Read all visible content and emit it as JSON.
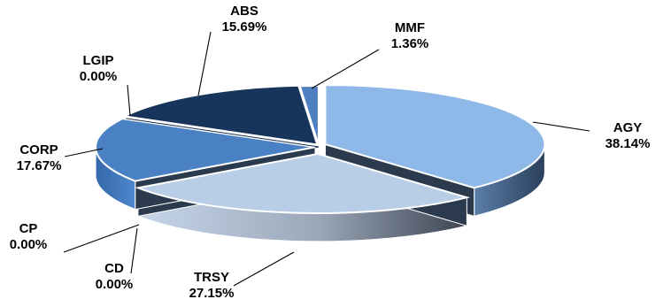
{
  "chart_data": {
    "type": "pie",
    "style": "3d-exploded",
    "title": "",
    "legend": "none",
    "slices": [
      {
        "name": "AGY",
        "value": 38.14,
        "label": "38.14%",
        "color": "#8db8e8"
      },
      {
        "name": "TRSY",
        "value": 27.15,
        "label": "27.15%",
        "color": "#b8cde6"
      },
      {
        "name": "CD",
        "value": 0.0,
        "label": "0.00%",
        "color": "#3d4f66"
      },
      {
        "name": "CP",
        "value": 0.0,
        "label": "0.00%",
        "color": "#2a3b55"
      },
      {
        "name": "CORP",
        "value": 17.67,
        "label": "17.67%",
        "color": "#4a80c4"
      },
      {
        "name": "LGIP",
        "value": 0.0,
        "label": "0.00%",
        "color": "#1a3152"
      },
      {
        "name": "ABS",
        "value": 15.69,
        "label": "15.69%",
        "color": "#17345a"
      },
      {
        "name": "MMF",
        "value": 1.36,
        "label": "1.36%",
        "color": "#4f7fc0"
      }
    ]
  }
}
